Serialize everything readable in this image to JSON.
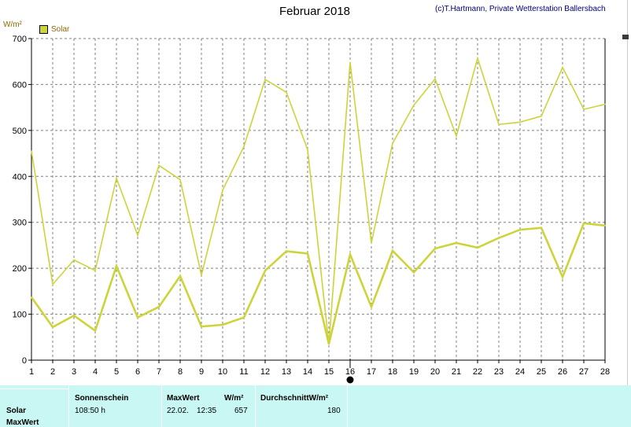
{
  "header": {
    "title": "Februar 2018",
    "credit": "(c)T.Hartmann, Private Wetterstation Ballersbach",
    "unit": "W/m²"
  },
  "legend": {
    "label": "Solar",
    "color": "#cdd43a"
  },
  "chart_data": {
    "type": "line",
    "x": [
      1,
      2,
      3,
      4,
      5,
      6,
      7,
      8,
      9,
      10,
      11,
      12,
      13,
      14,
      15,
      16,
      17,
      18,
      19,
      20,
      21,
      22,
      23,
      24,
      25,
      26,
      27,
      28
    ],
    "ylabel": "W/m²",
    "ylim": [
      0,
      700
    ],
    "xlim": [
      1,
      28
    ],
    "yticks": [
      0,
      100,
      200,
      300,
      400,
      500,
      600,
      700
    ],
    "grid": true,
    "legend_position": "top-left",
    "series": [
      {
        "name": "Solar",
        "role": "max",
        "values": [
          455,
          165,
          218,
          195,
          396,
          272,
          424,
          393,
          185,
          370,
          465,
          611,
          583,
          458,
          35,
          648,
          255,
          472,
          555,
          612,
          488,
          657,
          513,
          518,
          531,
          637,
          546,
          557
        ]
      },
      {
        "name": "Solar",
        "role": "average",
        "values": [
          137,
          72,
          97,
          64,
          205,
          93,
          116,
          183,
          73,
          77,
          93,
          195,
          237,
          232,
          35,
          230,
          116,
          238,
          191,
          243,
          255,
          245,
          266,
          284,
          288,
          181,
          298,
          293
        ]
      }
    ],
    "color": "#cdd43a"
  },
  "summary": {
    "row_labels": [
      "Solar",
      "MaxWert"
    ],
    "sonnenschein_label": "Sonnenschein",
    "sonnenschein_value": "108:50 h",
    "maxwert_label": "MaxWert",
    "maxwert_unit": "W/m²",
    "maxwert_date": "22.02.",
    "maxwert_time": "12:35",
    "maxwert_value": "657",
    "durchschnitt_label": "DurchschnittW/m²",
    "durchschnitt_value": "180"
  }
}
